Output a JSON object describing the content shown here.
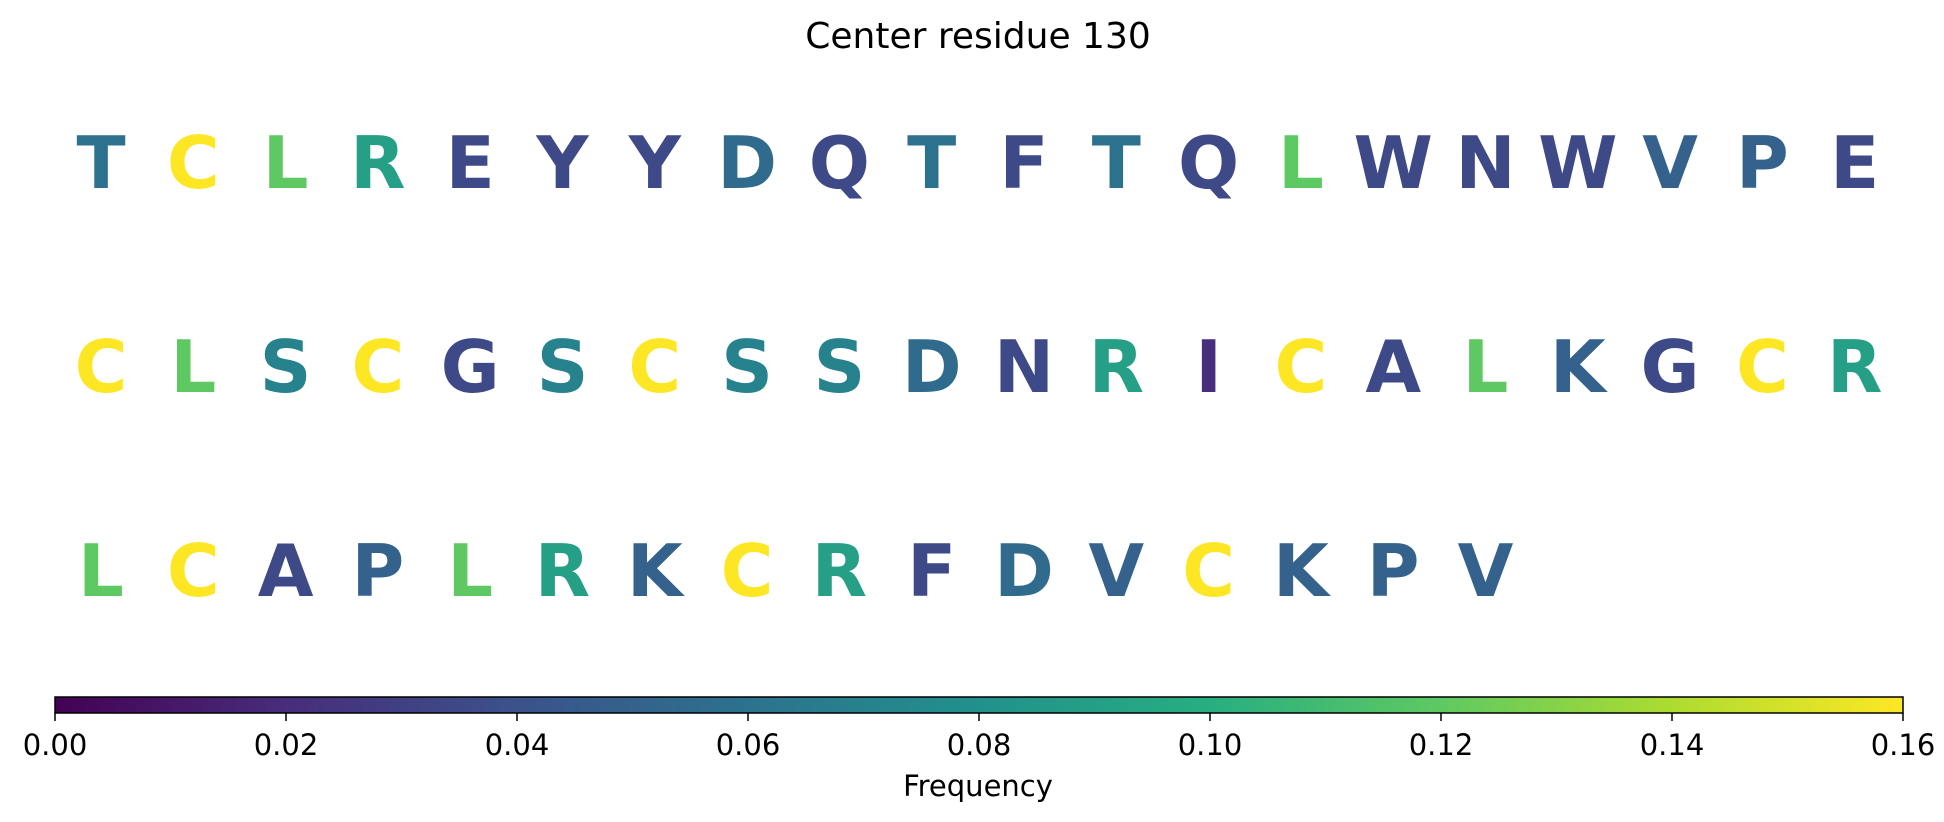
{
  "chart_data": {
    "type": "sequence-logo",
    "title": "Center residue 130",
    "rows": [
      [
        {
          "letter": "T",
          "value": 0.06
        },
        {
          "letter": "C",
          "value": 0.16
        },
        {
          "letter": "L",
          "value": 0.12
        },
        {
          "letter": "R",
          "value": 0.09
        },
        {
          "letter": "E",
          "value": 0.035
        },
        {
          "letter": "Y",
          "value": 0.035
        },
        {
          "letter": "Y",
          "value": 0.035
        },
        {
          "letter": "D",
          "value": 0.055
        },
        {
          "letter": "Q",
          "value": 0.035
        },
        {
          "letter": "T",
          "value": 0.06
        },
        {
          "letter": "F",
          "value": 0.035
        },
        {
          "letter": "T",
          "value": 0.06
        },
        {
          "letter": "Q",
          "value": 0.035
        },
        {
          "letter": "L",
          "value": 0.12
        },
        {
          "letter": "W",
          "value": 0.035
        },
        {
          "letter": "N",
          "value": 0.035
        },
        {
          "letter": "W",
          "value": 0.035
        },
        {
          "letter": "V",
          "value": 0.05
        },
        {
          "letter": "P",
          "value": 0.05
        },
        {
          "letter": "E",
          "value": 0.035
        }
      ],
      [
        {
          "letter": "C",
          "value": 0.16
        },
        {
          "letter": "L",
          "value": 0.12
        },
        {
          "letter": "S",
          "value": 0.07
        },
        {
          "letter": "C",
          "value": 0.16
        },
        {
          "letter": "G",
          "value": 0.035
        },
        {
          "letter": "S",
          "value": 0.07
        },
        {
          "letter": "C",
          "value": 0.16
        },
        {
          "letter": "S",
          "value": 0.07
        },
        {
          "letter": "S",
          "value": 0.07
        },
        {
          "letter": "D",
          "value": 0.055
        },
        {
          "letter": "N",
          "value": 0.035
        },
        {
          "letter": "R",
          "value": 0.09
        },
        {
          "letter": "I",
          "value": 0.02
        },
        {
          "letter": "C",
          "value": 0.16
        },
        {
          "letter": "A",
          "value": 0.035
        },
        {
          "letter": "L",
          "value": 0.12
        },
        {
          "letter": "K",
          "value": 0.05
        },
        {
          "letter": "G",
          "value": 0.035
        },
        {
          "letter": "C",
          "value": 0.16
        },
        {
          "letter": "R",
          "value": 0.09
        }
      ],
      [
        {
          "letter": "L",
          "value": 0.12
        },
        {
          "letter": "C",
          "value": 0.16
        },
        {
          "letter": "A",
          "value": 0.035
        },
        {
          "letter": "P",
          "value": 0.05
        },
        {
          "letter": "L",
          "value": 0.12
        },
        {
          "letter": "R",
          "value": 0.09
        },
        {
          "letter": "K",
          "value": 0.05
        },
        {
          "letter": "C",
          "value": 0.16
        },
        {
          "letter": "R",
          "value": 0.09
        },
        {
          "letter": "F",
          "value": 0.035
        },
        {
          "letter": "D",
          "value": 0.055
        },
        {
          "letter": "V",
          "value": 0.05
        },
        {
          "letter": "C",
          "value": 0.16
        },
        {
          "letter": "K",
          "value": 0.05
        },
        {
          "letter": "P",
          "value": 0.05
        },
        {
          "letter": "V",
          "value": 0.05
        }
      ]
    ],
    "colorbar": {
      "label": "Frequency",
      "colormap": "viridis",
      "range": [
        0,
        0.16
      ],
      "ticks": [
        0.0,
        0.02,
        0.04,
        0.06,
        0.08,
        0.1,
        0.12,
        0.14,
        0.16
      ],
      "tick_labels": [
        "0.00",
        "0.02",
        "0.04",
        "0.06",
        "0.08",
        "0.10",
        "0.12",
        "0.14",
        "0.16"
      ],
      "orientation": "horizontal"
    }
  }
}
